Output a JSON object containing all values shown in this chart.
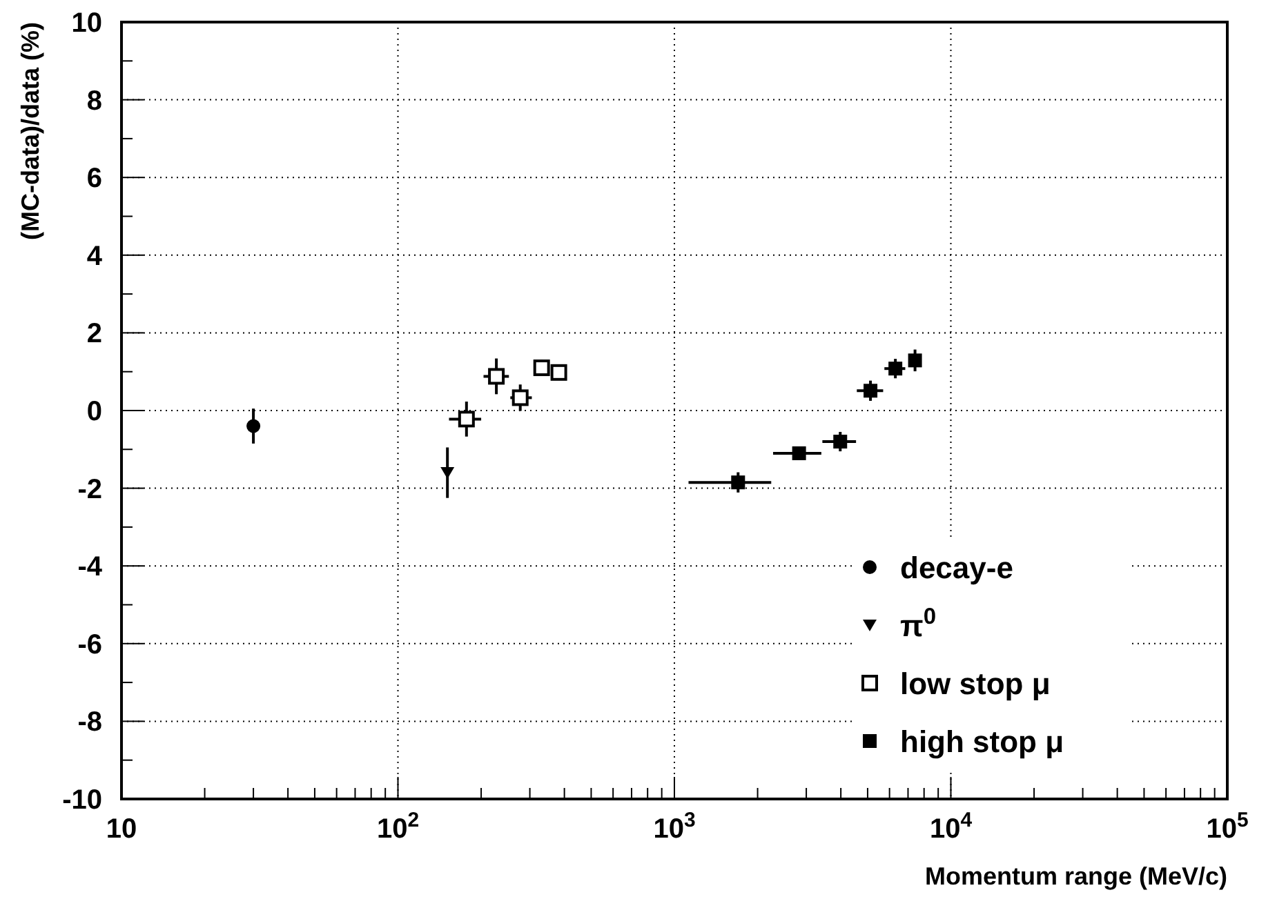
{
  "chart_data": {
    "type": "scatter",
    "xlabel": "Momentum range (MeV/c)",
    "ylabel": "(MC-data)/data (%)",
    "log": "x",
    "grid": true,
    "legend": "bottom right",
    "xlim": [
      10,
      100000
    ],
    "xticks": [
      10,
      {
        "value": 100,
        "label": "10$^{2}$"
      },
      {
        "value": 1000,
        "label": "10$^{3}$"
      },
      {
        "value": 10000,
        "label": "10$^{4}$"
      },
      {
        "value": 100000,
        "label": "10$^{5}$"
      }
    ],
    "ylim": [
      -10,
      10
    ],
    "yticks": [
      -10,
      -8,
      -6,
      -4,
      -2,
      0,
      2,
      4,
      6,
      8,
      10
    ],
    "series": [
      {
        "name": "decay-e",
        "color": "#000000",
        "marker": "circle",
        "x": [
          30
        ],
        "values": [
          -0.4
        ],
        "errors": [
          0.45
        ]
      },
      {
        "name": "π$^{0}$",
        "color": "#000000",
        "marker": "triangle",
        "x": [
          151
        ],
        "values": [
          -1.6
        ],
        "errors": [
          0.65
        ]
      },
      {
        "name": "low stop μ",
        "color": "#000000",
        "marker": "square-open",
        "x": [
          177,
          227,
          277,
          331,
          382
        ],
        "values": [
          -0.22,
          0.88,
          0.33,
          1.1,
          0.98
        ],
        "errors": [
          0.45,
          0.46,
          0.34,
          0.2,
          0.15
        ],
        "xerrors": [
          [
            153,
            200
          ],
          [
            204,
            252
          ],
          [
            255,
            305
          ],
          null,
          null
        ]
      },
      {
        "name": "high stop μ",
        "color": "#000000",
        "marker": "square",
        "x": [
          1700,
          2825,
          3980,
          5120,
          6300,
          7420
        ],
        "values": [
          -1.85,
          -1.1,
          -0.8,
          0.51,
          1.08,
          1.29
        ],
        "errors": [
          0.26,
          0.1,
          0.25,
          0.26,
          0.25,
          0.28
        ],
        "xerrors": [
          [
            1125,
            2240
          ],
          [
            2275,
            3400
          ],
          [
            3430,
            4540
          ],
          [
            4570,
            5690
          ],
          [
            5750,
            6840
          ],
          null
        ]
      }
    ]
  }
}
